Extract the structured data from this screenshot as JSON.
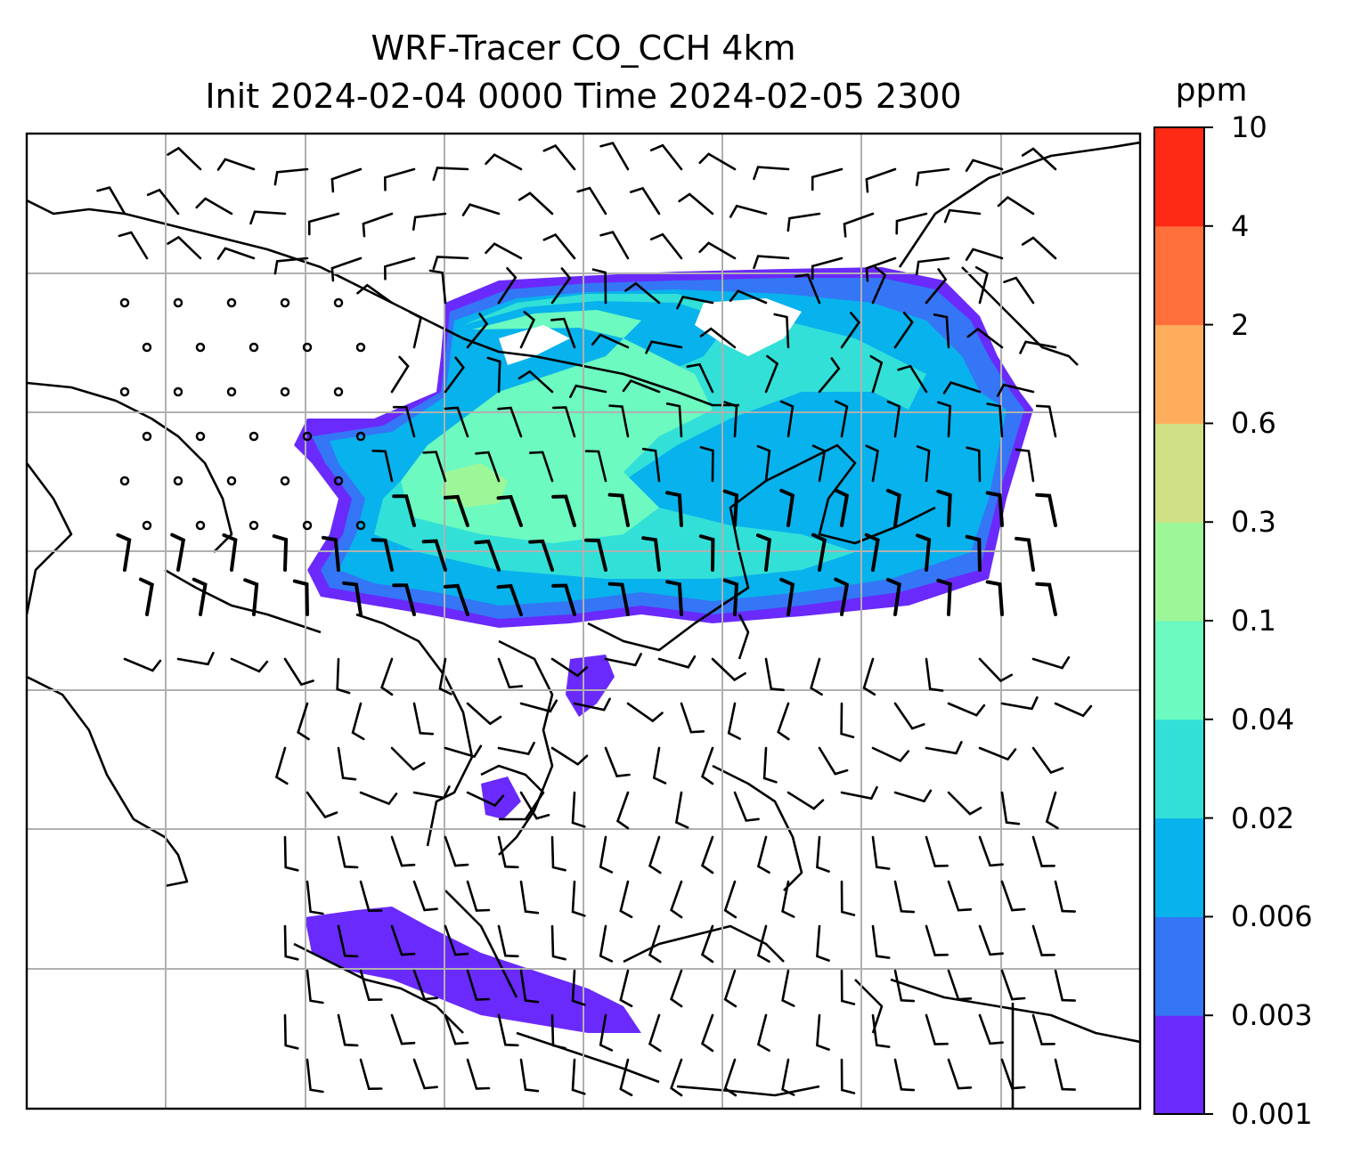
{
  "title": {
    "line1": "WRF-Tracer CO_CCH 4km",
    "line2": "Init 2024-02-04 0000 Time 2024-02-05 2300"
  },
  "map": {
    "variable": "CO_CCH tracer concentration",
    "gridlines": true,
    "overlay": "wind barbs"
  },
  "colorbar": {
    "unit": "ppm",
    "ticks": [
      "0.001",
      "0.003",
      "0.006",
      "0.02",
      "0.04",
      "0.1",
      "0.3",
      "0.6",
      "2",
      "4",
      "10"
    ],
    "colors": [
      "#6a2afb",
      "#3476f5",
      "#08b2ec",
      "#32e0d8",
      "#6cfac0",
      "#9df798",
      "#cfe184",
      "#ffae5e",
      "#ff703c",
      "#ff2a16"
    ]
  }
}
